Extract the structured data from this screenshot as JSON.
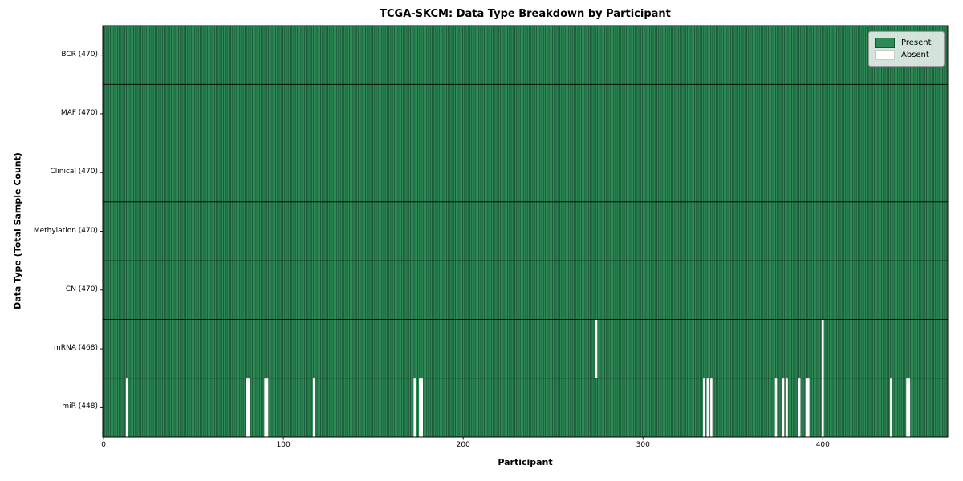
{
  "title": "TCGA-SKCM: Data Type Breakdown by Participant",
  "xlabel": "Participant",
  "ylabel": "Data Type (Total Sample Count)",
  "legend": {
    "present_label": "Present",
    "absent_label": "Absent"
  },
  "colors": {
    "present": "#2e8b57",
    "absent": "#ffffff",
    "cell_edge": "#1a5434",
    "row_divider": "#000000",
    "axis": "#000000"
  },
  "x_ticks": [
    0,
    100,
    200,
    300,
    400
  ],
  "chart_data": {
    "type": "heatmap",
    "title": "TCGA-SKCM: Data Type Breakdown by Participant",
    "xlabel": "Participant",
    "ylabel": "Data Type (Total Sample Count)",
    "x_range": [
      0,
      470
    ],
    "x_tick_values": [
      0,
      100,
      200,
      300,
      400
    ],
    "legend": [
      "Present",
      "Absent"
    ],
    "legend_position": "upper right",
    "grid": false,
    "rows": [
      {
        "label": "BCR (470)",
        "data_type": "BCR",
        "present_count": 470,
        "absent_participants": []
      },
      {
        "label": "MAF (470)",
        "data_type": "MAF",
        "present_count": 470,
        "absent_participants": []
      },
      {
        "label": "Clinical (470)",
        "data_type": "Clinical",
        "present_count": 470,
        "absent_participants": []
      },
      {
        "label": "Methylation (470)",
        "data_type": "Methylation",
        "present_count": 470,
        "absent_participants": []
      },
      {
        "label": "CN (470)",
        "data_type": "CN",
        "present_count": 470,
        "absent_participants": []
      },
      {
        "label": "mRNA (468)",
        "data_type": "mRNA",
        "present_count": 468,
        "absent_participants": [
          274,
          400
        ]
      },
      {
        "label": "miR (448)",
        "data_type": "miR",
        "present_count": 448,
        "absent_participants": [
          13,
          80,
          81,
          90,
          91,
          117,
          173,
          176,
          177,
          334,
          336,
          338,
          374,
          378,
          380,
          387,
          391,
          392,
          400,
          438,
          447,
          448
        ]
      }
    ]
  }
}
